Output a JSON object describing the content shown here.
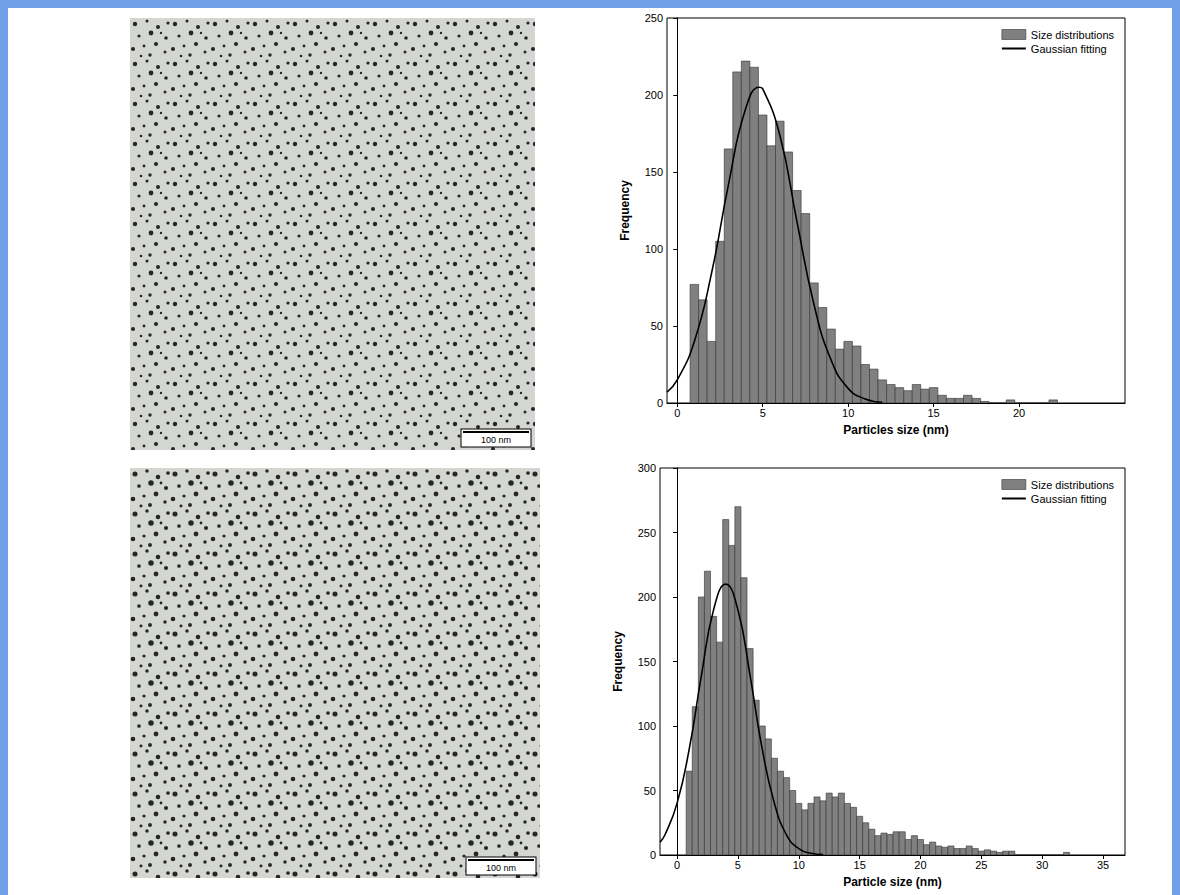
{
  "chart_data": [
    {
      "type": "histogram",
      "x_label": "Particles size (nm)",
      "y_label": "Frequency",
      "xlim": [
        -0.6,
        26.2
      ],
      "ylim": [
        0,
        250
      ],
      "xticks": [
        0,
        5,
        10,
        15,
        20
      ],
      "yticks": [
        0,
        50,
        100,
        150,
        200,
        250
      ],
      "grid": false,
      "legend": "upper right",
      "series": [
        {
          "name": "Size distributions",
          "type": "histogram",
          "color": "#808080",
          "bins": [
            0.75,
            1.25,
            1.75,
            2.25,
            2.75,
            3.25,
            3.75,
            4.25,
            4.75,
            5.25,
            5.75,
            6.25,
            6.75,
            7.25,
            7.75,
            8.25,
            8.75,
            9.25,
            9.75,
            10.25,
            10.75,
            11.25,
            11.75,
            12.25,
            12.75,
            13.25,
            13.75,
            14.25,
            14.75,
            15.25,
            15.75,
            16.25,
            16.75,
            17.25,
            17.75,
            18.25,
            18.75,
            19.25,
            19.75,
            20.25,
            20.75,
            21.25,
            21.75,
            22.25
          ],
          "values": [
            77,
            67,
            40,
            105,
            165,
            215,
            222,
            218,
            187,
            167,
            183,
            163,
            138,
            123,
            78,
            62,
            48,
            35,
            40,
            37,
            25,
            22,
            15,
            12,
            10,
            8,
            12,
            9,
            10,
            5,
            3,
            3,
            5,
            3,
            1,
            0,
            0,
            2,
            0,
            0,
            0,
            0,
            2
          ]
        },
        {
          "name": "Gaussian fitting",
          "type": "line",
          "color": "#000000",
          "x": [
            -0.6,
            0,
            1,
            2,
            3,
            4,
            4.8,
            5,
            6,
            7,
            8,
            9,
            10,
            11,
            12
          ],
          "values": [
            7,
            15,
            40,
            84,
            142,
            191,
            205,
            204,
            174,
            118,
            64,
            28,
            9.5,
            2.6,
            0.5
          ]
        }
      ]
    },
    {
      "type": "histogram",
      "x_label": "Particle size (nm)",
      "y_label": "Frequency",
      "xlim": [
        -1.4,
        36.8
      ],
      "ylim": [
        0,
        300
      ],
      "xticks": [
        0,
        5,
        10,
        15,
        20,
        25,
        30,
        35
      ],
      "yticks": [
        0,
        50,
        100,
        150,
        200,
        250,
        300
      ],
      "grid": false,
      "legend": "upper right",
      "series": [
        {
          "name": "Size distributions",
          "type": "histogram",
          "color": "#808080",
          "bins": [
            0.75,
            1.25,
            1.75,
            2.25,
            2.75,
            3.25,
            3.75,
            4.25,
            4.75,
            5.25,
            5.75,
            6.25,
            6.75,
            7.25,
            7.75,
            8.25,
            8.75,
            9.25,
            9.75,
            10.25,
            10.75,
            11.25,
            11.75,
            12.25,
            12.75,
            13.25,
            13.75,
            14.25,
            14.75,
            15.25,
            15.75,
            16.25,
            16.75,
            17.25,
            17.75,
            18.25,
            18.75,
            19.25,
            19.75,
            20.25,
            20.75,
            21.25,
            21.75,
            22.25,
            22.75,
            23.25,
            23.75,
            24.25,
            24.75,
            25.25,
            25.75,
            26.25,
            26.75,
            27.25,
            27.75,
            28.25,
            28.75,
            29.25,
            29.75,
            30.25,
            30.75,
            31.25,
            31.75,
            32.25
          ],
          "values": [
            65,
            115,
            200,
            220,
            185,
            165,
            260,
            240,
            270,
            215,
            160,
            120,
            100,
            90,
            75,
            65,
            60,
            50,
            40,
            35,
            40,
            45,
            42,
            48,
            45,
            48,
            40,
            37,
            30,
            25,
            20,
            15,
            17,
            16,
            18,
            18,
            12,
            15,
            12,
            8,
            10,
            7,
            6,
            7,
            5,
            5,
            7,
            5,
            3,
            4,
            3,
            2,
            3,
            3,
            0,
            0,
            0,
            0,
            0,
            0,
            0,
            0,
            2
          ]
        },
        {
          "name": "Gaussian fitting",
          "type": "line",
          "color": "#000000",
          "x": [
            -1.4,
            -1,
            0,
            1,
            2,
            3,
            4,
            5,
            6,
            7,
            8,
            9,
            10,
            11,
            12
          ],
          "values": [
            10,
            15.5,
            40,
            82,
            139,
            190,
            210,
            190,
            139,
            82,
            40,
            15.5,
            5,
            1.3,
            0.3
          ]
        }
      ]
    }
  ],
  "images": [
    {
      "scale_bar": "100 nm"
    },
    {
      "scale_bar": "100 nm"
    }
  ]
}
